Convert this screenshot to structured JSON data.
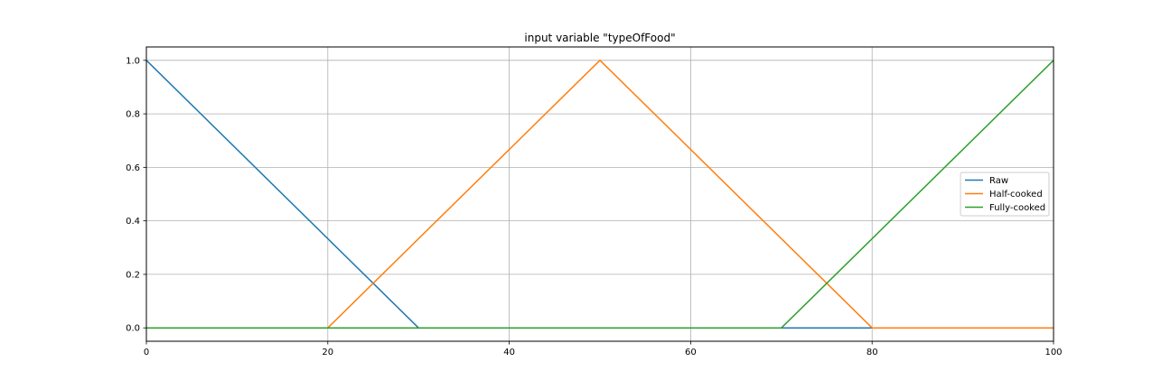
{
  "chart_data": {
    "type": "line",
    "title": "input variable \"typeOfFood\"",
    "xlabel": "",
    "ylabel": "",
    "xlim": [
      0,
      100
    ],
    "ylim": [
      -0.05,
      1.05
    ],
    "xticks": [
      0,
      20,
      40,
      60,
      80,
      100
    ],
    "xtick_labels": [
      "0",
      "20",
      "40",
      "60",
      "80",
      "100"
    ],
    "yticks": [
      0.0,
      0.2,
      0.4,
      0.6,
      0.8,
      1.0
    ],
    "ytick_labels": [
      "0.0",
      "0.2",
      "0.4",
      "0.6",
      "0.8",
      "1.0"
    ],
    "grid": true,
    "legend_position": "center-right",
    "series": [
      {
        "name": "Raw",
        "color": "#1f77b4",
        "x": [
          0,
          30,
          100
        ],
        "y": [
          1,
          0,
          0
        ]
      },
      {
        "name": "Half-cooked",
        "color": "#ff7f0e",
        "x": [
          0,
          20,
          50,
          80,
          100
        ],
        "y": [
          0,
          0,
          1,
          0,
          0
        ]
      },
      {
        "name": "Fully-cooked",
        "color": "#2ca02c",
        "x": [
          0,
          70,
          100
        ],
        "y": [
          0,
          0,
          1
        ]
      }
    ]
  }
}
